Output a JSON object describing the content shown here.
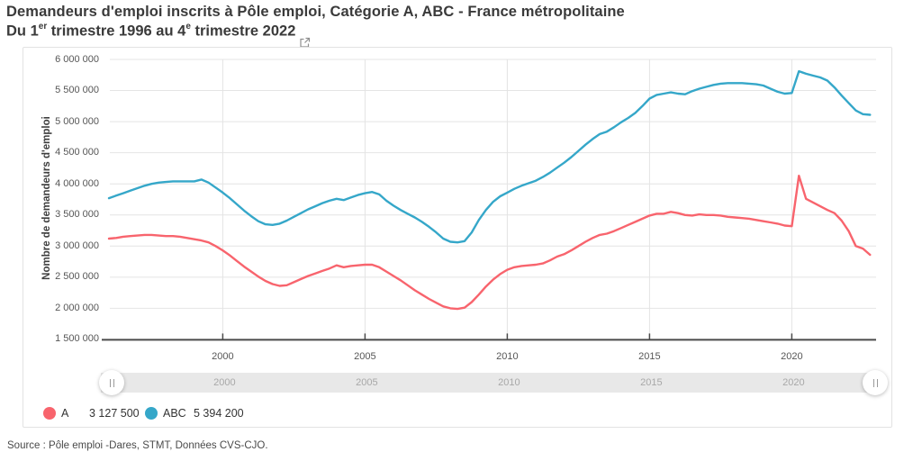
{
  "header": {
    "title": "Demandeurs d'emploi inscrits à Pôle emploi, Catégorie A, ABC - France métropolitaine",
    "subtitle_parts": {
      "p1": "Du 1",
      "sup1": "er",
      "p2": " trimestre 1996 au 4",
      "sup2": "e",
      "p3": " trimestre 2022"
    }
  },
  "chart_data": {
    "type": "line",
    "title": "Demandeurs d'emploi inscrits à Pôle emploi, Catégorie A, ABC - France métropolitaine",
    "subtitle": "Du 1er trimestre 1996 au 4e trimestre 2022",
    "ylabel": "Nombre de demandeurs d'emploi",
    "xlabel": "",
    "grid": true,
    "legend_position": "bottom-left",
    "ylim": [
      1500000,
      6000000
    ],
    "x_start_year": 1996,
    "x_step_years": 0.25,
    "x_end_label": "T4 2022",
    "x_ticks": {
      "values": [
        2000,
        2005,
        2010,
        2015,
        2020
      ],
      "labels": [
        "2000",
        "2005",
        "2010",
        "2015",
        "2020"
      ]
    },
    "y_ticks": {
      "values": [
        6000000,
        5500000,
        5000000,
        4500000,
        4000000,
        3500000,
        3000000,
        2500000,
        2000000,
        1500000
      ],
      "labels": [
        "6 000 000",
        "5 500 000",
        "5 000 000",
        "4 500 000",
        "4 000 000",
        "3 500 000",
        "3 000 000",
        "2 500 000",
        "2 000 000",
        "1 500 000"
      ]
    },
    "series": [
      {
        "name": "A",
        "color": "#f8646d",
        "legend_value": "3 127 500",
        "values": [
          3120000,
          3130000,
          3150000,
          3160000,
          3170000,
          3180000,
          3180000,
          3170000,
          3160000,
          3160000,
          3150000,
          3130000,
          3110000,
          3090000,
          3060000,
          3000000,
          2930000,
          2850000,
          2760000,
          2670000,
          2590000,
          2510000,
          2440000,
          2390000,
          2360000,
          2370000,
          2420000,
          2470000,
          2520000,
          2560000,
          2600000,
          2640000,
          2690000,
          2660000,
          2680000,
          2690000,
          2700000,
          2700000,
          2660000,
          2590000,
          2520000,
          2450000,
          2370000,
          2290000,
          2220000,
          2150000,
          2090000,
          2030000,
          2000000,
          1990000,
          2010000,
          2100000,
          2220000,
          2350000,
          2460000,
          2550000,
          2620000,
          2660000,
          2680000,
          2690000,
          2700000,
          2720000,
          2770000,
          2830000,
          2870000,
          2930000,
          3000000,
          3070000,
          3130000,
          3180000,
          3200000,
          3240000,
          3290000,
          3340000,
          3390000,
          3440000,
          3490000,
          3520000,
          3520000,
          3550000,
          3530000,
          3500000,
          3490000,
          3510000,
          3500000,
          3500000,
          3490000,
          3470000,
          3460000,
          3450000,
          3440000,
          3420000,
          3400000,
          3380000,
          3360000,
          3330000,
          3320000,
          4130000,
          3760000,
          3700000,
          3640000,
          3580000,
          3530000,
          3410000,
          3240000,
          3000000,
          2960000,
          2860000
        ]
      },
      {
        "name": "ABC",
        "color": "#35a7c9",
        "legend_value": "5 394 200",
        "values": [
          3770000,
          3810000,
          3850000,
          3890000,
          3930000,
          3970000,
          4000000,
          4020000,
          4030000,
          4040000,
          4040000,
          4040000,
          4040000,
          4070000,
          4020000,
          3940000,
          3860000,
          3770000,
          3670000,
          3570000,
          3480000,
          3400000,
          3350000,
          3340000,
          3360000,
          3410000,
          3470000,
          3530000,
          3590000,
          3640000,
          3690000,
          3730000,
          3760000,
          3740000,
          3780000,
          3820000,
          3850000,
          3870000,
          3830000,
          3730000,
          3650000,
          3580000,
          3520000,
          3460000,
          3390000,
          3310000,
          3220000,
          3120000,
          3070000,
          3060000,
          3080000,
          3220000,
          3420000,
          3580000,
          3710000,
          3800000,
          3860000,
          3920000,
          3970000,
          4010000,
          4050000,
          4110000,
          4180000,
          4260000,
          4340000,
          4430000,
          4530000,
          4630000,
          4720000,
          4800000,
          4840000,
          4910000,
          4990000,
          5060000,
          5140000,
          5250000,
          5370000,
          5430000,
          5450000,
          5470000,
          5450000,
          5440000,
          5490000,
          5530000,
          5560000,
          5590000,
          5610000,
          5620000,
          5620000,
          5620000,
          5610000,
          5600000,
          5580000,
          5530000,
          5480000,
          5450000,
          5460000,
          5810000,
          5770000,
          5740000,
          5710000,
          5660000,
          5550000,
          5420000,
          5300000,
          5180000,
          5120000,
          5110000
        ]
      }
    ]
  },
  "slider": {
    "labels": [
      "2000",
      "2005",
      "2010",
      "2015",
      "2020"
    ]
  },
  "source": "Source : Pôle emploi -Dares, STMT, Données CVS-CJO."
}
